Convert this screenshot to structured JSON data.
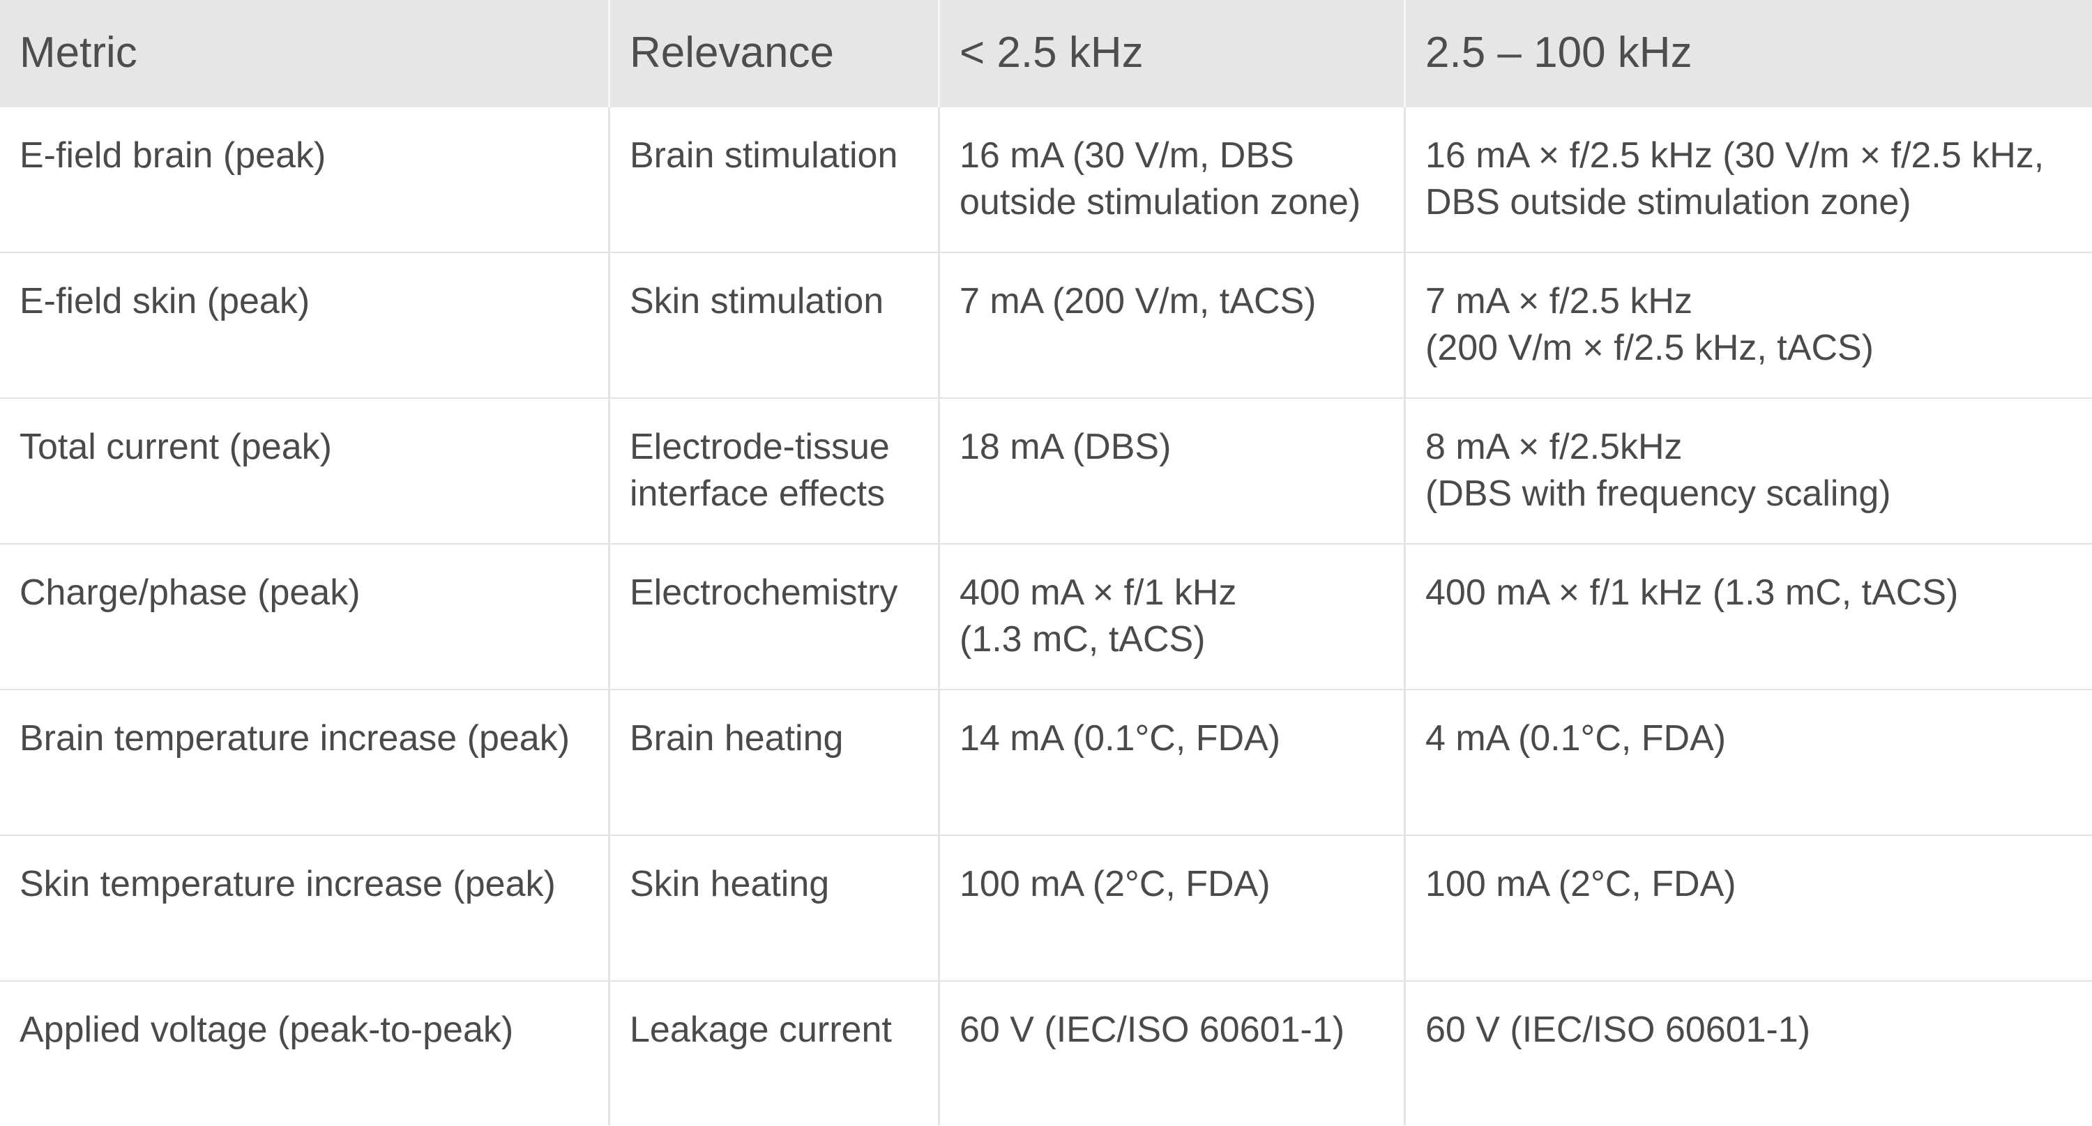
{
  "headers": {
    "metric": "Metric",
    "relevance": "Relevance",
    "low": "< 2.5 kHz",
    "high": "2.5 – 100 kHz"
  },
  "rows": [
    {
      "metric": "E-field brain (peak)",
      "relevance": "Brain stimulation",
      "low_1": "16 mA (30 V/m, DBS",
      "low_2": "outside stimulation zone)",
      "high_1": "16 mA × f/2.5 kHz (30 V/m × f/2.5 kHz,",
      "high_2": "DBS outside stimulation zone)"
    },
    {
      "metric": "E-field skin (peak)",
      "relevance": "Skin stimulation",
      "low_1": "7 mA (200 V/m, tACS)",
      "low_2": "",
      "high_1": "7 mA × f/2.5 kHz",
      "high_2": "(200 V/m × f/2.5 kHz, tACS)"
    },
    {
      "metric": "Total current (peak)",
      "relevance_1": "Electrode-tissue",
      "relevance_2": "interface effects",
      "low_1": "18 mA (DBS)",
      "low_2": "",
      "high_1": "8 mA × f/2.5kHz",
      "high_2": "(DBS with frequency scaling)"
    },
    {
      "metric": "Charge/phase (peak)",
      "relevance": "Electrochemistry",
      "low_1": "400 mA × f/1 kHz",
      "low_2": "(1.3 mC, tACS)",
      "high_1": "400 mA × f/1 kHz (1.3 mC, tACS)",
      "high_2": ""
    },
    {
      "metric": "Brain temperature increase (peak)",
      "relevance": "Brain heating",
      "low_1": "14 mA (0.1°C, FDA)",
      "low_2": "",
      "high_1": "4 mA (0.1°C, FDA)",
      "high_2": ""
    },
    {
      "metric": "Skin temperature increase (peak)",
      "relevance": "Skin heating",
      "low_1": "100 mA (2°C, FDA)",
      "low_2": "",
      "high_1": "100 mA (2°C, FDA)",
      "high_2": ""
    },
    {
      "metric": "Applied voltage (peak-to-peak)",
      "relevance": "Leakage current",
      "low_1": "60 V (IEC/ISO 60601-1)",
      "low_2": "",
      "high_1": "60 V (IEC/ISO 60601-1)",
      "high_2": ""
    }
  ]
}
